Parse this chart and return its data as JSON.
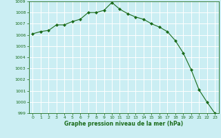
{
  "x": [
    0,
    1,
    2,
    3,
    4,
    5,
    6,
    7,
    8,
    9,
    10,
    11,
    12,
    13,
    14,
    15,
    16,
    17,
    18,
    19,
    20,
    21,
    22,
    23
  ],
  "y": [
    1006.1,
    1006.3,
    1006.4,
    1006.9,
    1006.9,
    1007.2,
    1007.4,
    1008.0,
    1008.0,
    1008.2,
    1008.9,
    1008.3,
    1007.9,
    1007.6,
    1007.4,
    1007.0,
    1006.7,
    1006.3,
    1005.5,
    1004.4,
    1002.9,
    1001.1,
    1000.0,
    999.0
  ],
  "line_color": "#1a6b1a",
  "marker": "D",
  "marker_size": 2.0,
  "bg_color": "#cbeef3",
  "grid_color": "#ffffff",
  "xlabel": "Graphe pression niveau de la mer (hPa)",
  "xlabel_color": "#1a6b1a",
  "tick_color": "#1a6b1a",
  "ylim": [
    999,
    1009
  ],
  "xlim": [
    -0.5,
    23.5
  ],
  "yticks": [
    999,
    1000,
    1001,
    1002,
    1003,
    1004,
    1005,
    1006,
    1007,
    1008,
    1009
  ],
  "xticks": [
    0,
    1,
    2,
    3,
    4,
    5,
    6,
    7,
    8,
    9,
    10,
    11,
    12,
    13,
    14,
    15,
    16,
    17,
    18,
    19,
    20,
    21,
    22,
    23
  ]
}
